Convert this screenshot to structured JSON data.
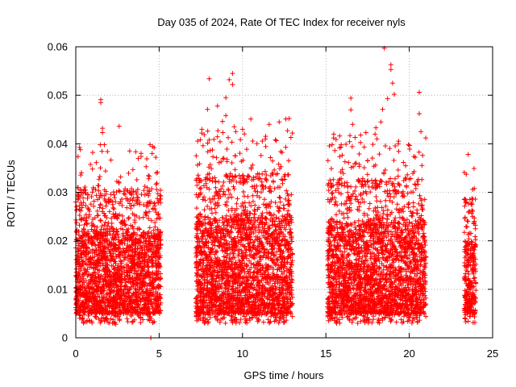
{
  "chart_data": {
    "type": "scatter",
    "title": "Day 035 of 2024, Rate Of TEC Index for receiver nyls",
    "xlabel": "GPS time / hours",
    "ylabel": "ROTI / TECUs",
    "xlim": [
      0,
      25
    ],
    "ylim": [
      0,
      0.06
    ],
    "grid": true,
    "marker": "+",
    "color": "#ff0000",
    "xticks": [
      0,
      5,
      10,
      15,
      20,
      25
    ],
    "yticks": [
      0,
      0.01,
      0.02,
      0.03,
      0.04,
      0.05,
      0.06
    ],
    "xtick_labels": [
      "0",
      "5",
      "10",
      "15",
      "20",
      "25"
    ],
    "ytick_labels": [
      "0",
      "0.01",
      "0.02",
      "0.03",
      "0.04",
      "0.05",
      "0.06"
    ],
    "observation_windows": [
      {
        "x_start": 0.0,
        "x_end": 5.1,
        "typical_min": 0.005,
        "typical_max": 0.022
      },
      {
        "x_start": 7.2,
        "x_end": 13.0,
        "typical_min": 0.005,
        "typical_max": 0.025
      },
      {
        "x_start": 15.1,
        "x_end": 21.0,
        "typical_min": 0.005,
        "typical_max": 0.024
      },
      {
        "x_start": 23.3,
        "x_end": 24.0,
        "typical_min": 0.005,
        "typical_max": 0.02
      }
    ],
    "notable_points": [
      {
        "x": 0.8,
        "y": 0.0049
      },
      {
        "x": 1.5,
        "y": 0.0491
      },
      {
        "x": 1.5,
        "y": 0.0485
      },
      {
        "x": 1.6,
        "y": 0.0432
      },
      {
        "x": 1.6,
        "y": 0.0423
      },
      {
        "x": 1.9,
        "y": 0.0384
      },
      {
        "x": 2.3,
        "y": 0.003
      },
      {
        "x": 2.4,
        "y": 0.0028
      },
      {
        "x": 2.6,
        "y": 0.0436
      },
      {
        "x": 4.5,
        "y": 0.0
      },
      {
        "x": 4.7,
        "y": 0.0392
      },
      {
        "x": 4.8,
        "y": 0.0372
      },
      {
        "x": 4.9,
        "y": 0.0341
      },
      {
        "x": 7.3,
        "y": 0.0356
      },
      {
        "x": 7.9,
        "y": 0.0471
      },
      {
        "x": 8.0,
        "y": 0.0534
      },
      {
        "x": 8.5,
        "y": 0.0478
      },
      {
        "x": 8.8,
        "y": 0.0446
      },
      {
        "x": 9.0,
        "y": 0.0495
      },
      {
        "x": 9.0,
        "y": 0.0458
      },
      {
        "x": 9.2,
        "y": 0.0532
      },
      {
        "x": 9.4,
        "y": 0.0545
      },
      {
        "x": 9.4,
        "y": 0.0522
      },
      {
        "x": 9.5,
        "y": 0.0435
      },
      {
        "x": 9.6,
        "y": 0.0425
      },
      {
        "x": 10.5,
        "y": 0.0451
      },
      {
        "x": 11.6,
        "y": 0.044
      },
      {
        "x": 12.2,
        "y": 0.0445
      },
      {
        "x": 12.6,
        "y": 0.0451
      },
      {
        "x": 12.7,
        "y": 0.0427
      },
      {
        "x": 12.8,
        "y": 0.0452
      },
      {
        "x": 12.9,
        "y": 0.0413
      },
      {
        "x": 15.9,
        "y": 0.0393
      },
      {
        "x": 16.5,
        "y": 0.0494
      },
      {
        "x": 16.5,
        "y": 0.047
      },
      {
        "x": 16.6,
        "y": 0.044
      },
      {
        "x": 17.4,
        "y": 0.0423
      },
      {
        "x": 18.0,
        "y": 0.0433
      },
      {
        "x": 18.3,
        "y": 0.0445
      },
      {
        "x": 18.4,
        "y": 0.0471
      },
      {
        "x": 18.5,
        "y": 0.0597
      },
      {
        "x": 18.7,
        "y": 0.0493
      },
      {
        "x": 18.9,
        "y": 0.0563
      },
      {
        "x": 18.9,
        "y": 0.0553
      },
      {
        "x": 19.0,
        "y": 0.0525
      },
      {
        "x": 19.1,
        "y": 0.0502
      },
      {
        "x": 20.6,
        "y": 0.0506
      },
      {
        "x": 20.6,
        "y": 0.0462
      },
      {
        "x": 20.7,
        "y": 0.0425
      },
      {
        "x": 20.8,
        "y": 0.0376
      },
      {
        "x": 23.3,
        "y": 0.0341
      },
      {
        "x": 23.3,
        "y": 0.0285
      },
      {
        "x": 23.8,
        "y": 0.025
      },
      {
        "x": 23.9,
        "y": 0.0247
      }
    ]
  }
}
